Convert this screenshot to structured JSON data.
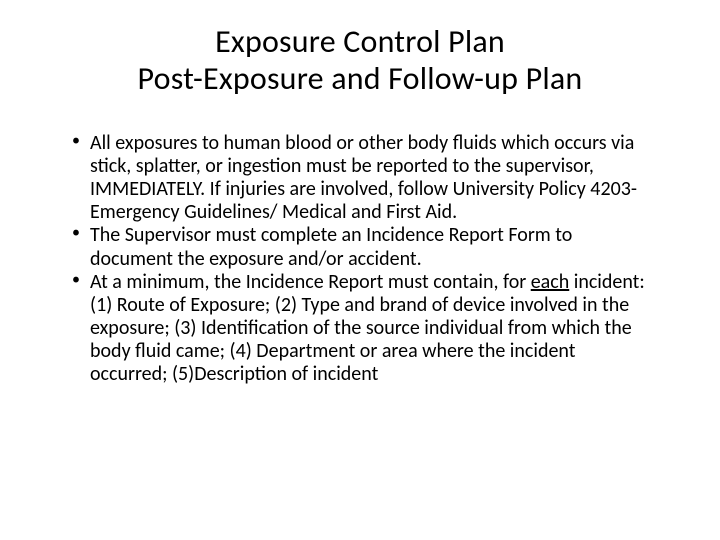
{
  "title": {
    "line1": "Exposure Control Plan",
    "line2": "Post-Exposure and Follow-up Plan"
  },
  "bullets": {
    "b1": "All exposures to human blood or other body fluids which occurs via stick, splatter, or ingestion must be reported to the supervisor, IMMEDIATELY. If injuries are involved, follow University Policy 4203- Emergency Guidelines/ Medical and First Aid.",
    "b2": "The Supervisor must complete an Incidence Report Form to document the exposure and/or accident.",
    "b3_pre": "At a minimum, the Incidence Report must contain, for ",
    "b3_underlined": "each",
    "b3_post": " incident: (1) Route of Exposure; (2) Type and brand of device involved in the exposure; (3) Identification of the source individual from which the body fluid came; (4) Department or area where the  incident occurred; (5)Description of incident"
  },
  "colors": {
    "background": "#ffffff",
    "text": "#000000"
  },
  "typography": {
    "title_fontsize": 32,
    "body_fontsize": 20,
    "font_family": "Calibri"
  }
}
